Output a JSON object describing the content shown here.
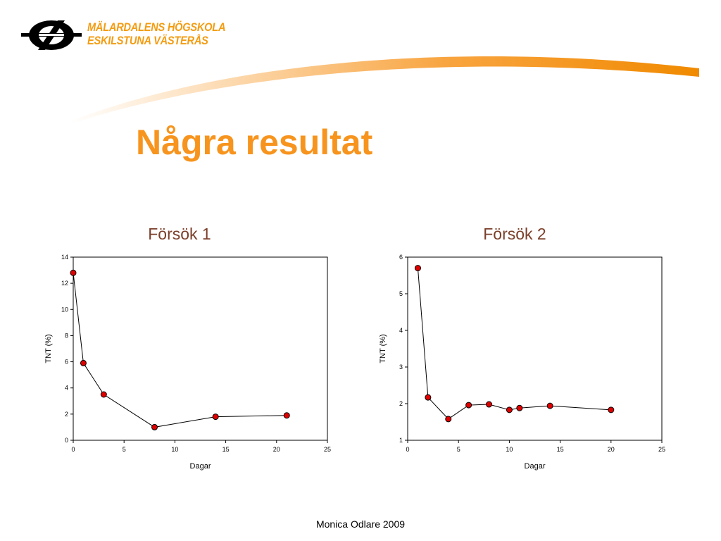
{
  "header": {
    "school_line1": "MÄLARDALENS HÖGSKOLA",
    "school_line2": "ESKILSTUNA VÄSTERÅS",
    "logo_icon": "mdh-logo-icon",
    "accent_color": "#f7941d"
  },
  "slide": {
    "title": "Några resultat",
    "footer": "Monica Odlare 2009"
  },
  "chart_data": [
    {
      "type": "line",
      "title": "Försök 1",
      "xlabel": "Dagar",
      "ylabel": "TNT (%)",
      "xlim": [
        0,
        25
      ],
      "ylim": [
        0,
        14
      ],
      "xticks": [
        0,
        5,
        10,
        15,
        20,
        25
      ],
      "yticks": [
        0,
        2,
        4,
        6,
        8,
        10,
        12,
        14
      ],
      "grid": false,
      "legend": "none",
      "marker_color": "#e00000",
      "x": [
        0,
        1,
        3,
        8,
        14,
        21
      ],
      "y": [
        12.8,
        5.9,
        3.5,
        1.0,
        1.8,
        1.9
      ]
    },
    {
      "type": "line",
      "title": "Försök 2",
      "xlabel": "Dagar",
      "ylabel": "TNT (%)",
      "xlim": [
        0,
        25
      ],
      "ylim": [
        1,
        6
      ],
      "xticks": [
        0,
        5,
        10,
        15,
        20,
        25
      ],
      "yticks": [
        1,
        2,
        3,
        4,
        5,
        6
      ],
      "grid": false,
      "legend": "none",
      "marker_color": "#e00000",
      "x": [
        1,
        2,
        4,
        6,
        8,
        10,
        11,
        14,
        20
      ],
      "y": [
        5.7,
        2.17,
        1.58,
        1.96,
        1.98,
        1.83,
        1.88,
        1.94,
        1.83
      ]
    }
  ]
}
